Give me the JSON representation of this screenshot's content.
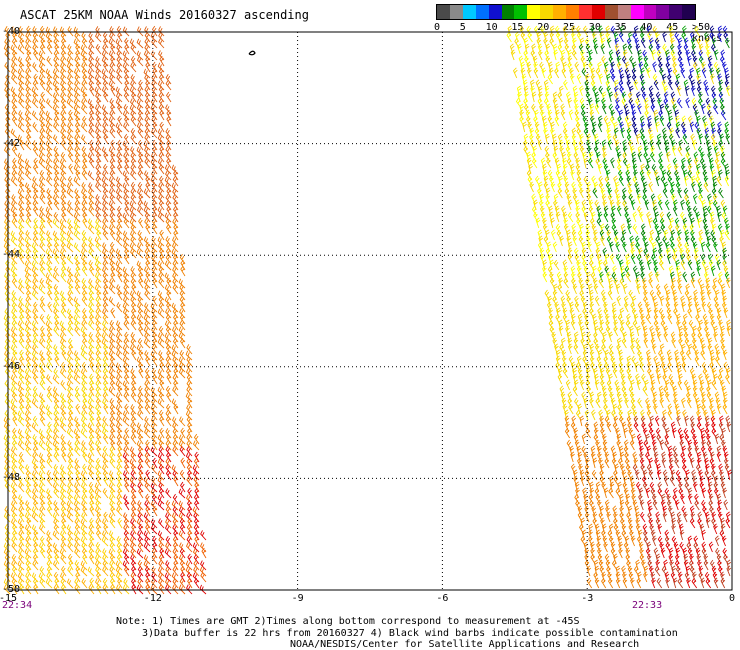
{
  "header": {
    "title": "ASCAT 25KM NOAA Winds 20160327 ascending"
  },
  "legend": {
    "colors": [
      "#4a4a4a",
      "#8a8a8a",
      "#00c8ff",
      "#0070ff",
      "#1010d0",
      "#008000",
      "#00c000",
      "#ffff00",
      "#f8d800",
      "#ffb000",
      "#ff8000",
      "#ff3030",
      "#e00000",
      "#a05030",
      "#c08080",
      "#ff00ff",
      "#c000c0",
      "#8000a0",
      "#400070",
      "#200050"
    ],
    "labels": [
      "0",
      "5",
      "10",
      "15",
      "20",
      "25",
      "30",
      "35",
      "40",
      "45",
      ">50 knots"
    ]
  },
  "axes": {
    "x_ticks": [
      "-15",
      "-12",
      "-9",
      "-6",
      "-3",
      "0"
    ],
    "y_ticks": [
      "-40",
      "-42",
      "-44",
      "-46",
      "-48",
      "-50"
    ],
    "x_range": [
      -15,
      0
    ],
    "y_range": [
      -40,
      -50
    ]
  },
  "times": {
    "left": "22:34",
    "right": "22:33"
  },
  "notes": {
    "line1": "Note: 1) Times are GMT 2)Times along bottom correspond to measurement at -45S",
    "line2": "3)Data buffer is 22 hrs from 20160327 4) Black wind barbs indicate possible contamination",
    "line3": "NOAA/NESDIS/Center for Satellite Applications and Research"
  },
  "swaths": {
    "left": {
      "lon_start_top": -15,
      "lon_end_top": -11.7,
      "lon_start_bottom": -15,
      "lon_end_bottom": -10.8
    },
    "right": {
      "lon_start_top": -4.6,
      "lon_end_top": 0,
      "lon_start_bottom": -2.9,
      "lon_end_bottom": 0
    }
  }
}
